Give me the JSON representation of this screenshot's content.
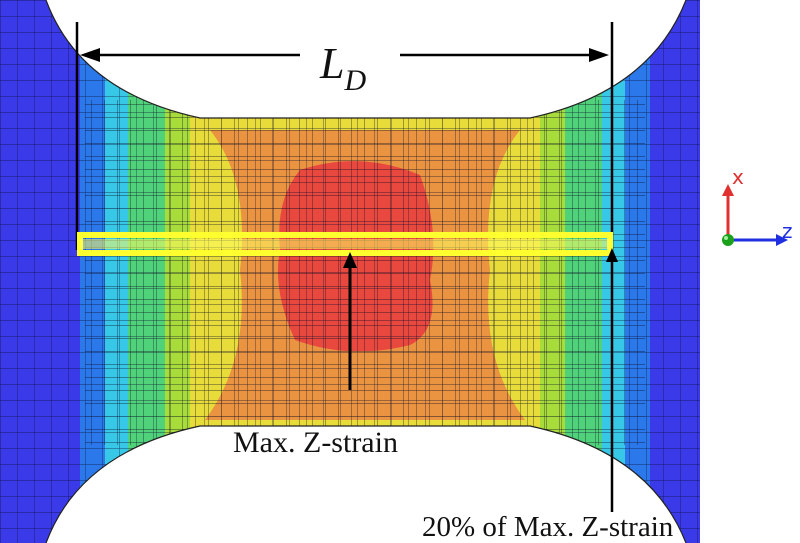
{
  "figure": {
    "dimension_label": {
      "main": "L",
      "subscript": "D"
    },
    "annotations": {
      "max_strain": "Max. Z-strain",
      "twenty_percent": "20% of Max. Z-strain"
    },
    "axes_triad": {
      "x_label": "x",
      "z_label": "z"
    },
    "colors": {
      "contour_scale": [
        "#3a3ae8",
        "#2b78ea",
        "#37c8e8",
        "#4fd27a",
        "#a8dc3a",
        "#e8dc3a",
        "#f0a83a",
        "#ea9340",
        "#e8483e"
      ],
      "highlight_box": "#ffff30",
      "x_axis": "#e03030",
      "y_axis": "#1aa01a",
      "z_axis": "#2030e0"
    }
  }
}
